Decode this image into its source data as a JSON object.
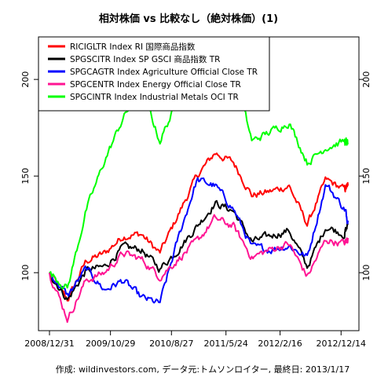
{
  "chart_data": {
    "type": "line",
    "title": "相対株価 vs 比較なし（絶対株価）(1)",
    "caption": "作成: wildinvestors.com, データ元:トムソンロイター, 最終日: 2013/1/17",
    "xlabel": "",
    "ylabel": "",
    "x_start": "2008/12/31",
    "x_end": "2013/1/17",
    "x_ticks": [
      "2008/12/31",
      "2009/10/29",
      "2010/8/27",
      "2011/5/24",
      "2012/2/16",
      "2012/12/14"
    ],
    "y_ticks": [
      100,
      150,
      200
    ],
    "ylim": [
      70,
      222
    ],
    "grid": false,
    "legend_position": "top-left",
    "x": [
      "2008/12/31",
      "2009/3/31",
      "2009/6/30",
      "2009/9/30",
      "2009/12/31",
      "2010/3/31",
      "2010/6/30",
      "2010/9/30",
      "2010/12/31",
      "2011/3/31",
      "2011/6/30",
      "2011/9/30",
      "2011/12/31",
      "2012/3/31",
      "2012/6/30",
      "2012/9/30",
      "2012/12/31",
      "2013/1/17"
    ],
    "series": [
      {
        "name": "RICIGLTR Index RI 国際商品指数",
        "color": "#ff0000",
        "values": [
          100,
          86,
          106,
          110,
          119,
          120,
          110,
          130,
          150,
          162,
          157,
          140,
          142,
          145,
          125,
          148,
          143,
          145
        ]
      },
      {
        "name": "SPGSCITR Index SP GSCI 商品指数 TR",
        "color": "#000000",
        "values": [
          100,
          86,
          101,
          103,
          113,
          112,
          102,
          112,
          124,
          136,
          132,
          116,
          119,
          122,
          103,
          124,
          120,
          125
        ]
      },
      {
        "name": "SPGCAGTR Index Agriculture Official Close TR",
        "color": "#0000ff",
        "values": [
          100,
          88,
          102,
          91,
          96,
          87,
          84,
          118,
          148,
          145,
          133,
          113,
          112,
          114,
          108,
          146,
          133,
          127
        ]
      },
      {
        "name": "SPGCENTR Index Energy Official Close TR",
        "color": "#ff1493",
        "values": [
          100,
          76,
          96,
          100,
          110,
          107,
          98,
          107,
          116,
          128,
          124,
          108,
          112,
          115,
          98,
          117,
          115,
          118
        ]
      },
      {
        "name": "SPGCINTR Index Industrial Metals OCI TR",
        "color": "#00ff00",
        "values": [
          100,
          92,
          132,
          158,
          180,
          196,
          168,
          190,
          218,
          208,
          205,
          168,
          173,
          178,
          157,
          165,
          168,
          167
        ]
      }
    ]
  }
}
